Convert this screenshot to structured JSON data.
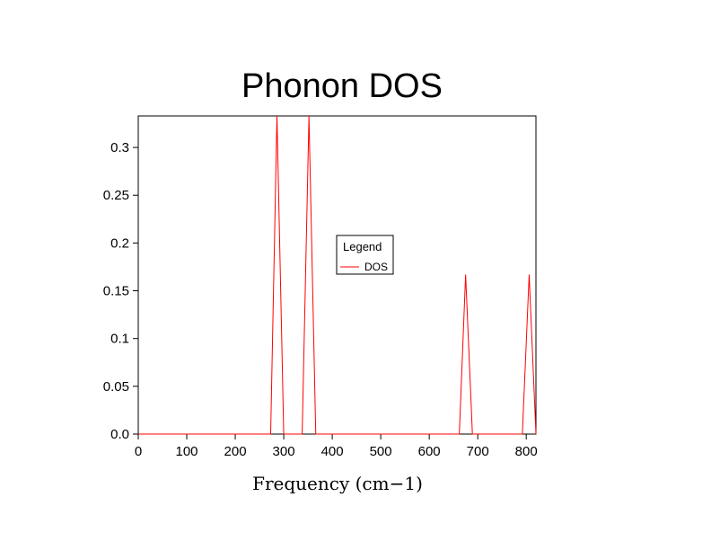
{
  "chart_data": {
    "type": "line",
    "title": "Phonon DOS",
    "xlabel": "Frequency (cm−1)",
    "ylabel": "",
    "xlim": [
      0,
      820
    ],
    "ylim": [
      0,
      0.333
    ],
    "x_ticks": [
      0,
      100,
      200,
      300,
      400,
      500,
      600,
      700,
      800
    ],
    "x_tick_labels": [
      "0",
      "100",
      "200",
      "300",
      "400",
      "500",
      "600",
      "700",
      "800"
    ],
    "y_ticks": [
      0.0,
      0.05,
      0.1,
      0.15,
      0.2,
      0.25,
      0.3
    ],
    "y_tick_labels": [
      "0.0",
      "0.05",
      "0.1",
      "0.15",
      "0.2",
      "0.25",
      "0.3"
    ],
    "grid": false,
    "legend": {
      "title": "Legend",
      "placement": "center"
    },
    "series": [
      {
        "name": "DOS",
        "color": "#ff0000",
        "x": [
          0,
          273,
          286,
          300,
          338,
          352,
          366,
          662,
          675,
          689,
          792,
          806,
          820
        ],
        "y": [
          0,
          0,
          0.333,
          0,
          0,
          0.333,
          0,
          0,
          0.167,
          0,
          0,
          0.167,
          0
        ]
      }
    ]
  }
}
